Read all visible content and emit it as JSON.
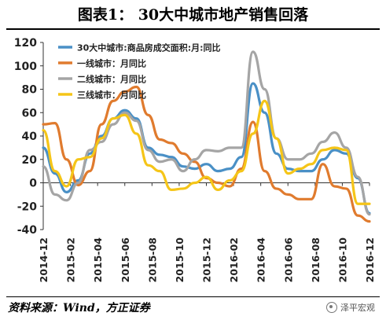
{
  "header": {
    "title": "图表1： 30大中城市地产销售回落"
  },
  "footer": {
    "source": "资料来源：Wind，方正证券",
    "watermark": "泽平宏观"
  },
  "colors": {
    "series_30": "#4A90C6",
    "series_tier1": "#E07B2E",
    "series_tier2": "#A5A5A5",
    "series_tier3": "#F5C518"
  },
  "chart_data": {
    "type": "line",
    "title": "",
    "xlabel": "",
    "ylabel": "",
    "ylim": [
      -40,
      120
    ],
    "yticks": [
      -40,
      -20,
      0,
      20,
      40,
      60,
      80,
      100,
      120
    ],
    "grid": false,
    "legend_position": "top-left",
    "x_labels": [
      "2014-12",
      "2015-02",
      "2015-04",
      "2015-06",
      "2015-08",
      "2015-10",
      "2015-12",
      "2016-02",
      "2016-04",
      "2016-06",
      "2016-08",
      "2016-10",
      "2016-12"
    ],
    "series": [
      {
        "name": "30大中城市:商品房成交面积:月:同比",
        "color": "#4A90C6",
        "values": [
          30,
          8,
          -8,
          2,
          25,
          40,
          55,
          62,
          55,
          30,
          24,
          22,
          14,
          12,
          16,
          10,
          12,
          22,
          85,
          60,
          25,
          12,
          10,
          10,
          20,
          28,
          25,
          4,
          -26
        ]
      },
      {
        "name": "一线城市：月同比",
        "color": "#E07B2E",
        "values": [
          50,
          51,
          20,
          -2,
          10,
          50,
          70,
          78,
          82,
          58,
          37,
          34,
          25,
          18,
          4,
          0,
          -3,
          12,
          52,
          10,
          -5,
          -10,
          -14,
          -14,
          16,
          -3,
          -5,
          -28,
          -33
        ]
      },
      {
        "name": "二线城市：月同比",
        "color": "#A5A5A5",
        "values": [
          14,
          -10,
          -15,
          0,
          28,
          35,
          50,
          60,
          53,
          28,
          18,
          20,
          10,
          20,
          28,
          27,
          30,
          30,
          112,
          80,
          38,
          20,
          20,
          25,
          35,
          43,
          30,
          5,
          -27
        ]
      },
      {
        "name": "三线城市：月同比",
        "color": "#F5C518",
        "values": [
          45,
          10,
          -3,
          20,
          22,
          38,
          55,
          58,
          42,
          15,
          10,
          -6,
          -5,
          0,
          5,
          -6,
          2,
          10,
          42,
          70,
          38,
          8,
          12,
          16,
          28,
          30,
          28,
          -18,
          -18
        ]
      }
    ]
  }
}
